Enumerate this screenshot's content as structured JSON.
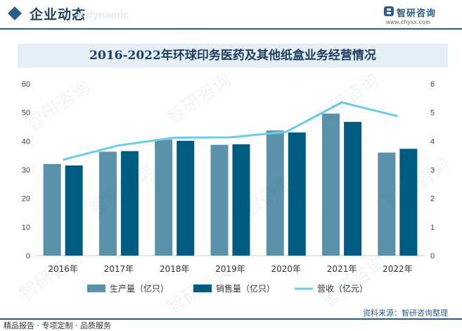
{
  "header": {
    "section_title": "企业动态",
    "section_subtitle": "e dynamic"
  },
  "brand": {
    "name": "智研咨询",
    "url": "www.chyxx.com"
  },
  "watermark": {
    "text": "智研咨询"
  },
  "chart_data": {
    "type": "bar",
    "title": "2016-2022年环球印务医药及其他纸盒业务经营情况",
    "categories": [
      "2016年",
      "2017年",
      "2018年",
      "2019年",
      "2020年",
      "2021年",
      "2022年"
    ],
    "series": [
      {
        "name": "生产量（亿只）",
        "kind": "bar",
        "axis": "left",
        "color": "#5b91a9",
        "values": [
          32.0,
          36.3,
          40.5,
          38.7,
          43.7,
          49.6,
          36.0
        ]
      },
      {
        "name": "销售量（亿只）",
        "kind": "bar",
        "axis": "left",
        "color": "#005b80",
        "values": [
          31.5,
          36.5,
          40.1,
          38.9,
          43.0,
          46.7,
          37.3
        ]
      },
      {
        "name": "营收（亿元）",
        "kind": "line",
        "axis": "right",
        "color": "#6ccbeb",
        "values": [
          3.35,
          3.85,
          4.12,
          4.13,
          4.32,
          5.35,
          4.87
        ]
      }
    ],
    "y_left": {
      "min": 0,
      "max": 60,
      "ticks": [
        "0",
        "10",
        "20",
        "30",
        "40",
        "50",
        "60"
      ]
    },
    "y_right": {
      "min": 0,
      "max": 6,
      "ticks": [
        "0",
        "1",
        "2",
        "3",
        "4",
        "5",
        "6"
      ]
    },
    "grid": false,
    "legend_position": "bottom"
  },
  "footer": {
    "source": "资料来源：智研咨询整理",
    "tagline": "精品报告 · 专项定制 · 品质服务"
  }
}
